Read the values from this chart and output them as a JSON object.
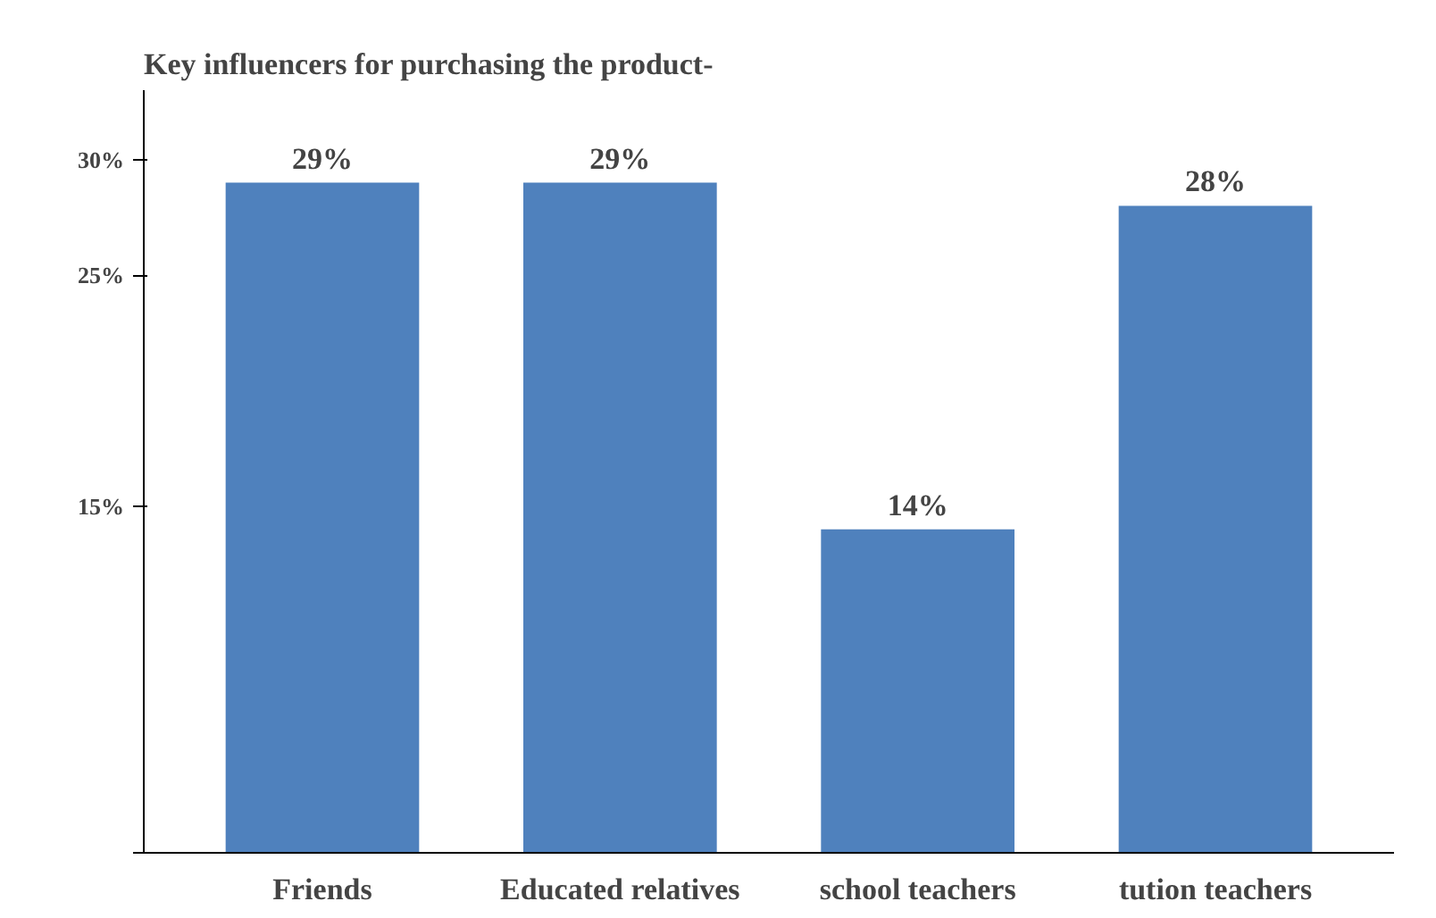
{
  "chart_data": {
    "type": "bar",
    "title": "Key influencers for purchasing the product-",
    "categories": [
      "Friends",
      "Educated relatives",
      "school teachers",
      "tution teachers"
    ],
    "values": [
      29,
      29,
      14,
      28
    ],
    "color": "#4f81bd",
    "value_labels": [
      "29%",
      "29%",
      "14%",
      "28%"
    ],
    "ylim": [
      0,
      33
    ],
    "yticks": [
      {
        "value": 0,
        "label": null
      },
      {
        "value": 15,
        "label": "15%"
      },
      {
        "value": 25,
        "label": "25%"
      },
      {
        "value": 30,
        "label": "30%"
      }
    ],
    "grid": false
  }
}
